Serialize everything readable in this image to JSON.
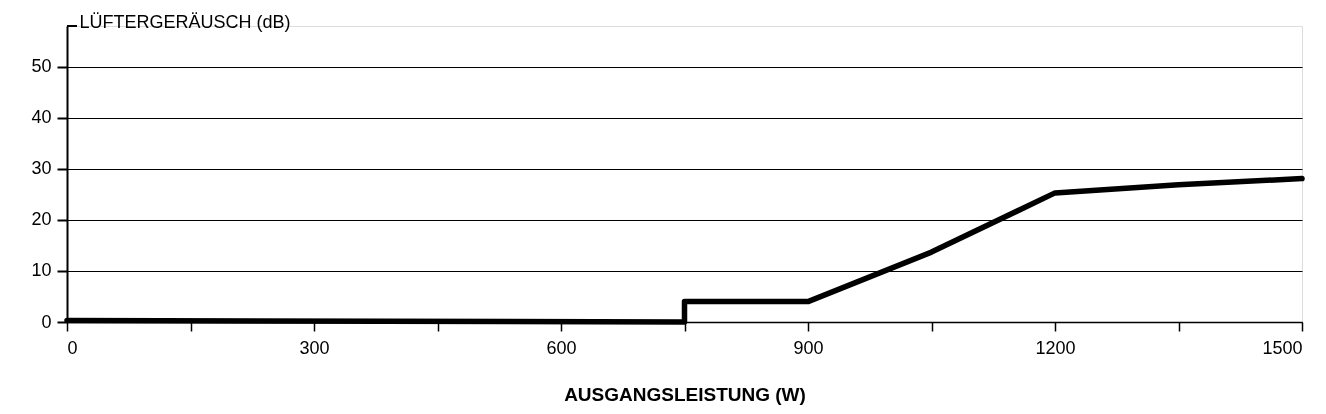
{
  "chart_data": {
    "type": "line",
    "xlabel": "AUSGANGSLEISTUNG (W)",
    "ylabel": "LÜFTERGERÄUSCH (dB)",
    "x": [
      0,
      750,
      750,
      900,
      1050,
      1200,
      1350,
      1500
    ],
    "series": [
      {
        "color": "#000000",
        "values": [
          0.3,
          0,
          4,
          4,
          13.7,
          25.3,
          26.9,
          28.1
        ]
      }
    ],
    "xlim": [
      0,
      1500
    ],
    "xticks": [
      0,
      {
        "value": 150,
        "label": null
      },
      300,
      {
        "value": 450,
        "label": null
      },
      600,
      {
        "value": 750,
        "label": null
      },
      900,
      {
        "value": 1050,
        "label": null
      },
      1200,
      {
        "value": 1350,
        "label": null
      },
      1500
    ],
    "ylim": [
      0,
      58
    ],
    "yticks": [
      0,
      10,
      20,
      30,
      40,
      50
    ],
    "grid": "y",
    "legend": false,
    "marker": "none",
    "line_style": "solid"
  }
}
